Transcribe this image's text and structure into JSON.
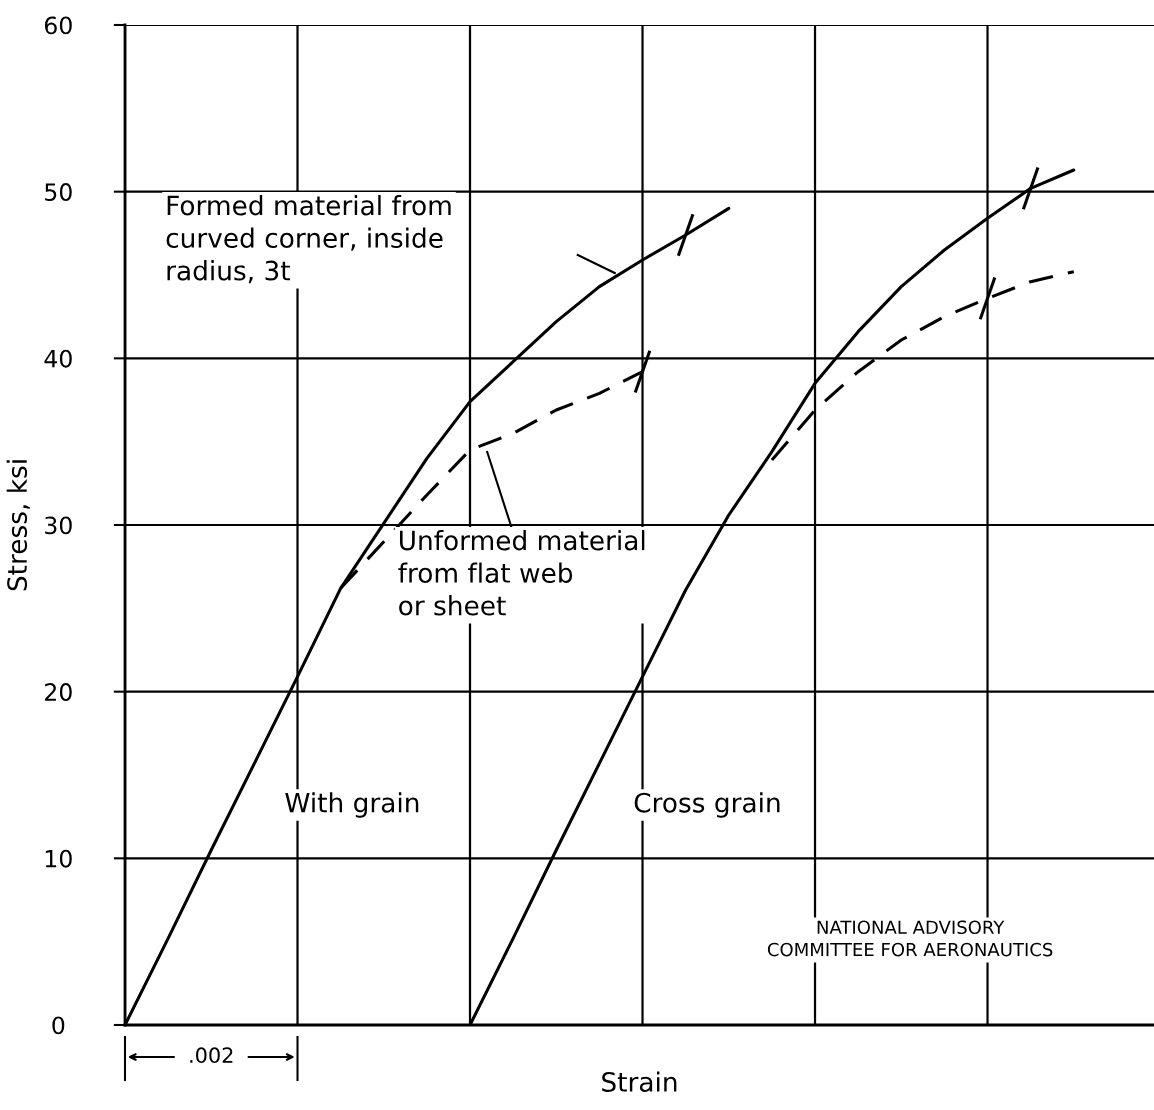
{
  "chart_data": {
    "type": "line",
    "xlabel": "Strain",
    "ylabel": "Stress, ksi",
    "categories": [
      null,
      null,
      null,
      null,
      null,
      null,
      null,
      null,
      null,
      null,
      null,
      null,
      null,
      null,
      null,
      null,
      null,
      null,
      null,
      null,
      null,
      null,
      null,
      null
    ],
    "ylim": [
      0,
      60
    ],
    "yticks": [
      0,
      10,
      20,
      30,
      40,
      50,
      60
    ],
    "grid": true,
    "legend": false,
    "marker": "none",
    "series": [
      {
        "color": "#000000",
        "line_style": "solid",
        "values": [
          0,
          5.2,
          10.5,
          15.7,
          20.9,
          26.2,
          30.1,
          34.0,
          37.4,
          39.8,
          42.2,
          44.3,
          45.9,
          47.4,
          49.0,
          null,
          null,
          null,
          null,
          null,
          null,
          null,
          null,
          null
        ]
      },
      {
        "color": "#000000",
        "line_style": "dashed",
        "values": [
          null,
          null,
          null,
          null,
          null,
          26.2,
          29.0,
          31.8,
          34.5,
          35.5,
          36.9,
          37.9,
          39.2,
          null,
          null,
          null,
          null,
          null,
          null,
          null,
          null,
          null,
          null,
          null
        ]
      },
      {
        "color": "#000000",
        "line_style": "solid",
        "values": [
          null,
          null,
          null,
          null,
          null,
          null,
          null,
          null,
          0,
          5.2,
          10.5,
          15.7,
          20.9,
          26.1,
          30.6,
          34.4,
          38.5,
          41.6,
          44.3,
          46.5,
          48.4,
          50.2,
          51.3,
          null
        ]
      },
      {
        "color": "#000000",
        "line_style": "dashed",
        "values": [
          null,
          null,
          null,
          null,
          null,
          null,
          null,
          null,
          null,
          null,
          null,
          null,
          null,
          null,
          null,
          33.9,
          36.9,
          39.2,
          41.1,
          42.5,
          43.6,
          44.6,
          45.2,
          null
        ]
      },
      {
        "type": "scatter",
        "marker": "cross",
        "color": "#000000",
        "values": [
          null,
          null,
          null,
          null,
          null,
          null,
          null,
          null,
          null,
          null,
          null,
          null,
          39.2,
          47.4,
          null,
          null,
          null,
          null,
          null,
          null,
          43.6,
          50.2,
          null,
          null
        ]
      }
    ],
    "annotations": [
      "Formed material from\ncurved corner, inside\nradius, 3t",
      "Unformed material\nfrom flat web\nor sheet",
      "With grain",
      "Cross grain",
      ".002",
      "NATIONAL ADVISORY\nCOMMITTEE FOR AERONAUTICS"
    ]
  }
}
